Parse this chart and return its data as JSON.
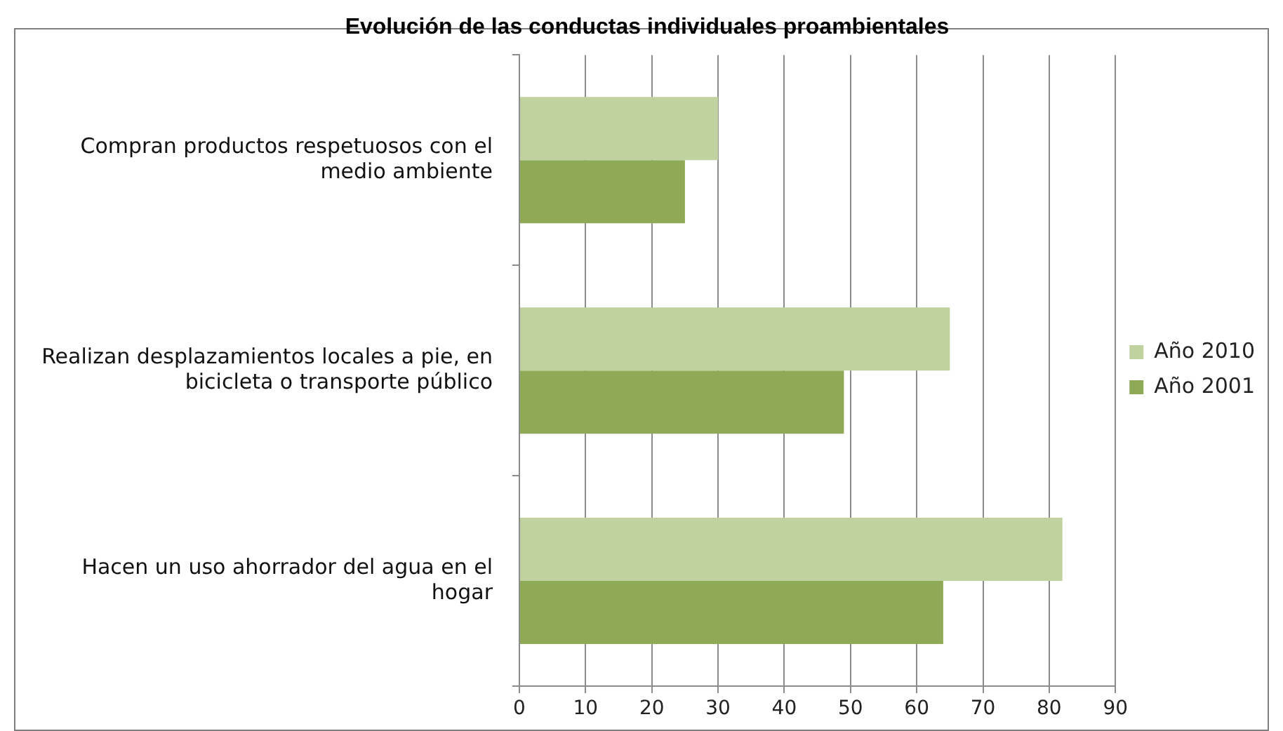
{
  "chart_data": {
    "type": "bar",
    "orientation": "horizontal",
    "title": "Evolución de las conductas individuales proambientales",
    "categories": [
      "Compran productos respetuosos con el medio ambiente",
      "Realizan desplazamientos locales a pie, en bicicleta o transporte público",
      "Hacen un uso ahorrador del agua en el hogar"
    ],
    "series": [
      {
        "name": "Año 2010",
        "color": "#c0d2a0",
        "values": [
          30,
          65,
          82
        ]
      },
      {
        "name": "Año 2001",
        "color": "#8eaa56",
        "values": [
          25,
          49,
          64
        ]
      }
    ],
    "xlim": [
      0,
      90
    ],
    "xticks": [
      0,
      10,
      20,
      30,
      40,
      50,
      60,
      70,
      80,
      90
    ],
    "grid": "x",
    "legend": "right"
  }
}
